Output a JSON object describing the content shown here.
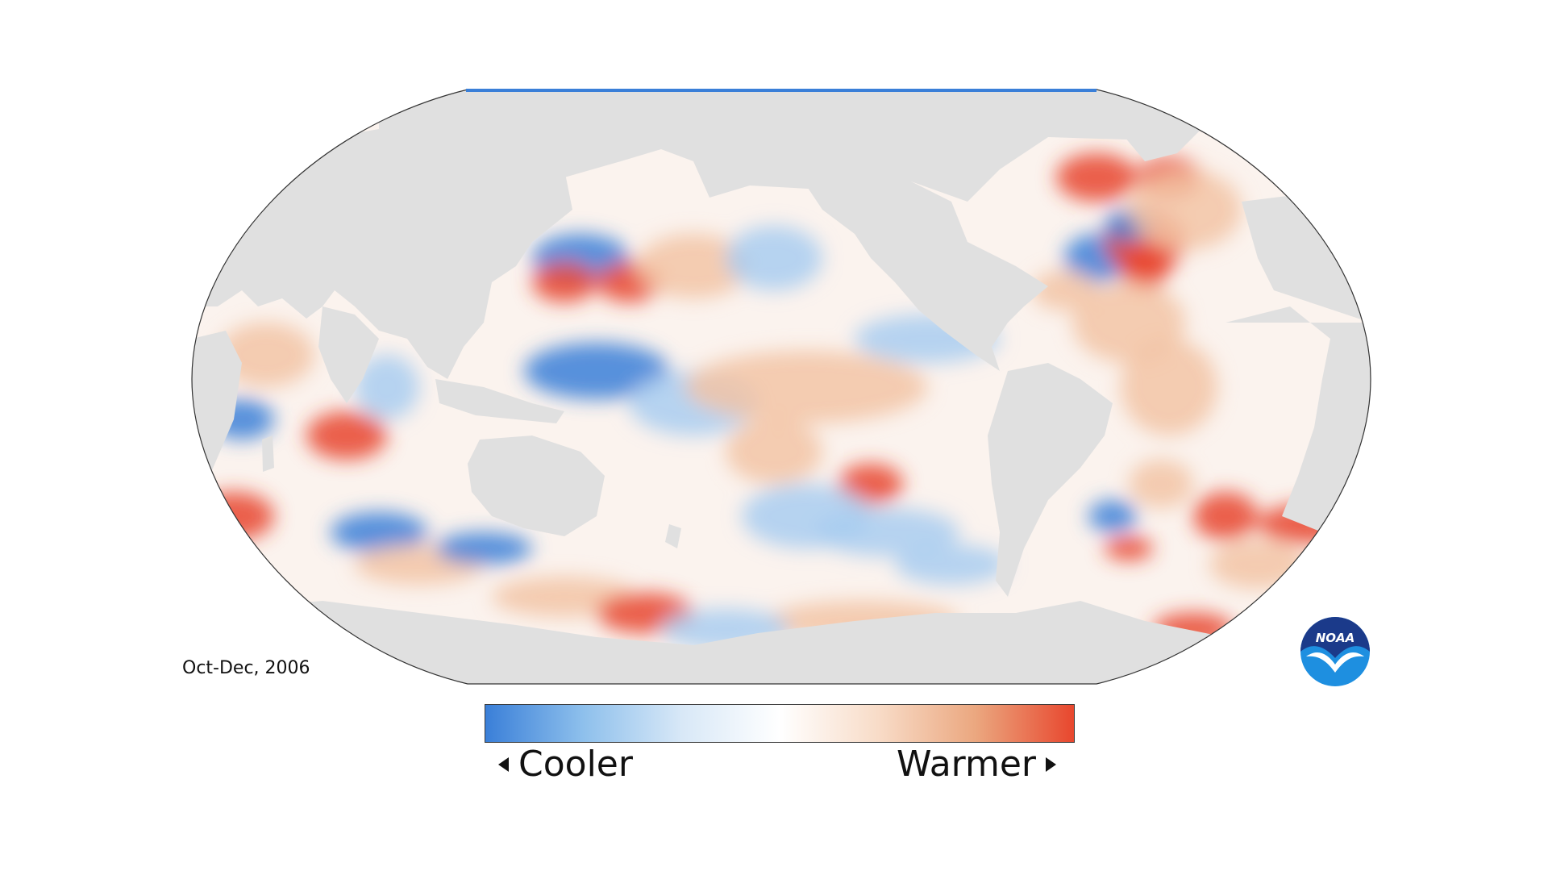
{
  "map": {
    "period": "Oct-Dec, 2006",
    "logo_text": "NOAA",
    "colors": {
      "land": "#e0e0e0",
      "ocean_neutral": "#ffffff",
      "cool": "#3a7fd8",
      "cool_light": "#a9cdf0",
      "warm_light": "#f2c4a6",
      "warm": "#e8472e",
      "outline": "#333333",
      "logo_blue": "#1e8fe0"
    }
  },
  "legend": {
    "low_label": "Cooler",
    "high_label": "Warmer",
    "gradient": [
      "#3a7fd8",
      "#8ec0ec",
      "#d8e8f7",
      "#ffffff",
      "#f8dcc8",
      "#eba77f",
      "#e8472e"
    ]
  }
}
